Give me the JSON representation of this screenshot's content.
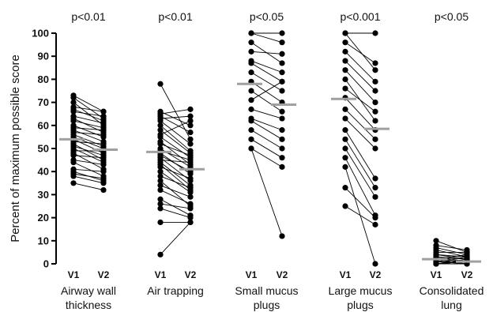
{
  "chart_data": {
    "type": "scatter",
    "ylabel": "Percent of maximum possible score",
    "ylim": [
      0,
      100
    ],
    "yticks": [
      0,
      10,
      20,
      30,
      40,
      50,
      60,
      70,
      80,
      90,
      100
    ],
    "visit_labels": [
      "V1",
      "V2"
    ],
    "median_line_color": "#a0a0a0",
    "point_color": "#000000",
    "groups": [
      {
        "category_lines": [
          "Airway wall",
          "thickness"
        ],
        "p_value": "p<0.01",
        "median_v1": 54,
        "median_v2": 49.5,
        "pairs": [
          [
            73,
            66
          ],
          [
            72,
            63
          ],
          [
            70,
            60
          ],
          [
            68,
            66
          ],
          [
            67,
            62
          ],
          [
            66,
            64
          ],
          [
            64,
            61
          ],
          [
            63,
            57
          ],
          [
            62,
            59
          ],
          [
            60,
            55
          ],
          [
            59,
            58
          ],
          [
            58,
            53
          ],
          [
            57,
            56
          ],
          [
            56,
            51
          ],
          [
            55,
            50
          ],
          [
            54,
            48
          ],
          [
            53,
            52
          ],
          [
            52,
            45
          ],
          [
            51,
            47
          ],
          [
            50,
            44
          ],
          [
            49,
            49
          ],
          [
            48,
            41
          ],
          [
            47,
            46
          ],
          [
            45,
            43
          ],
          [
            44,
            38
          ],
          [
            41,
            40
          ],
          [
            40,
            36
          ],
          [
            39,
            37
          ],
          [
            38,
            35
          ],
          [
            35,
            32
          ]
        ]
      },
      {
        "category_lines": [
          "Air trapping"
        ],
        "p_value": "p<0.01",
        "median_v1": 48.5,
        "median_v2": 41,
        "pairs": [
          [
            78,
            54
          ],
          [
            66,
            60
          ],
          [
            65,
            67
          ],
          [
            64,
            57
          ],
          [
            63,
            64
          ],
          [
            62,
            52
          ],
          [
            60,
            49
          ],
          [
            58,
            48
          ],
          [
            56,
            62
          ],
          [
            55,
            46
          ],
          [
            53,
            43
          ],
          [
            52,
            47
          ],
          [
            50,
            42
          ],
          [
            49,
            45
          ],
          [
            48,
            39
          ],
          [
            47,
            40
          ],
          [
            46,
            36
          ],
          [
            45,
            44
          ],
          [
            44,
            34
          ],
          [
            43,
            32
          ],
          [
            42,
            37
          ],
          [
            40,
            31
          ],
          [
            38,
            33
          ],
          [
            36,
            25
          ],
          [
            34,
            29
          ],
          [
            32,
            26
          ],
          [
            28,
            21
          ],
          [
            26,
            24
          ],
          [
            24,
            20
          ],
          [
            18,
            18
          ],
          [
            4,
            18
          ]
        ]
      },
      {
        "category_lines": [
          "Small mucus",
          "plugs"
        ],
        "p_value": "p<0.05",
        "median_v1": 78,
        "median_v2": 69,
        "pairs": [
          [
            100,
            96
          ],
          [
            100,
            100
          ],
          [
            96,
            87
          ],
          [
            92,
            91
          ],
          [
            88,
            83
          ],
          [
            87,
            79
          ],
          [
            83,
            75
          ],
          [
            79,
            70
          ],
          [
            75,
            66
          ],
          [
            71,
            79
          ],
          [
            67,
            63
          ],
          [
            63,
            58
          ],
          [
            62,
            54
          ],
          [
            58,
            50
          ],
          [
            54,
            46
          ],
          [
            50,
            42
          ],
          [
            50,
            12
          ]
        ]
      },
      {
        "category_lines": [
          "Large mucus",
          "plugs"
        ],
        "p_value": "p<0.001",
        "median_v1": 71.5,
        "median_v2": 58.5,
        "pairs": [
          [
            100,
            100
          ],
          [
            100,
            84
          ],
          [
            96,
            87
          ],
          [
            92,
            79
          ],
          [
            88,
            75
          ],
          [
            84,
            70
          ],
          [
            80,
            62
          ],
          [
            76,
            66
          ],
          [
            72,
            58
          ],
          [
            67,
            54
          ],
          [
            63,
            50
          ],
          [
            58,
            37
          ],
          [
            54,
            33
          ],
          [
            50,
            29
          ],
          [
            46,
            21
          ],
          [
            33,
            20
          ],
          [
            25,
            17
          ],
          [
            42,
            0
          ]
        ]
      },
      {
        "category_lines": [
          "Consolidated",
          "lung"
        ],
        "p_value": "p<0.05",
        "median_v1": 2,
        "median_v2": 1,
        "pairs": [
          [
            10,
            5
          ],
          [
            8,
            6
          ],
          [
            7,
            4
          ],
          [
            6,
            3
          ],
          [
            5,
            5
          ],
          [
            4,
            2
          ],
          [
            4,
            3
          ],
          [
            3,
            1
          ],
          [
            3,
            2
          ],
          [
            2,
            1
          ],
          [
            2,
            0
          ],
          [
            1,
            1
          ],
          [
            1,
            0
          ],
          [
            0,
            0
          ],
          [
            0,
            2
          ],
          [
            0,
            1
          ],
          [
            0,
            0
          ],
          [
            2,
            4
          ],
          [
            1,
            3
          ],
          [
            0,
            1
          ]
        ]
      }
    ]
  }
}
